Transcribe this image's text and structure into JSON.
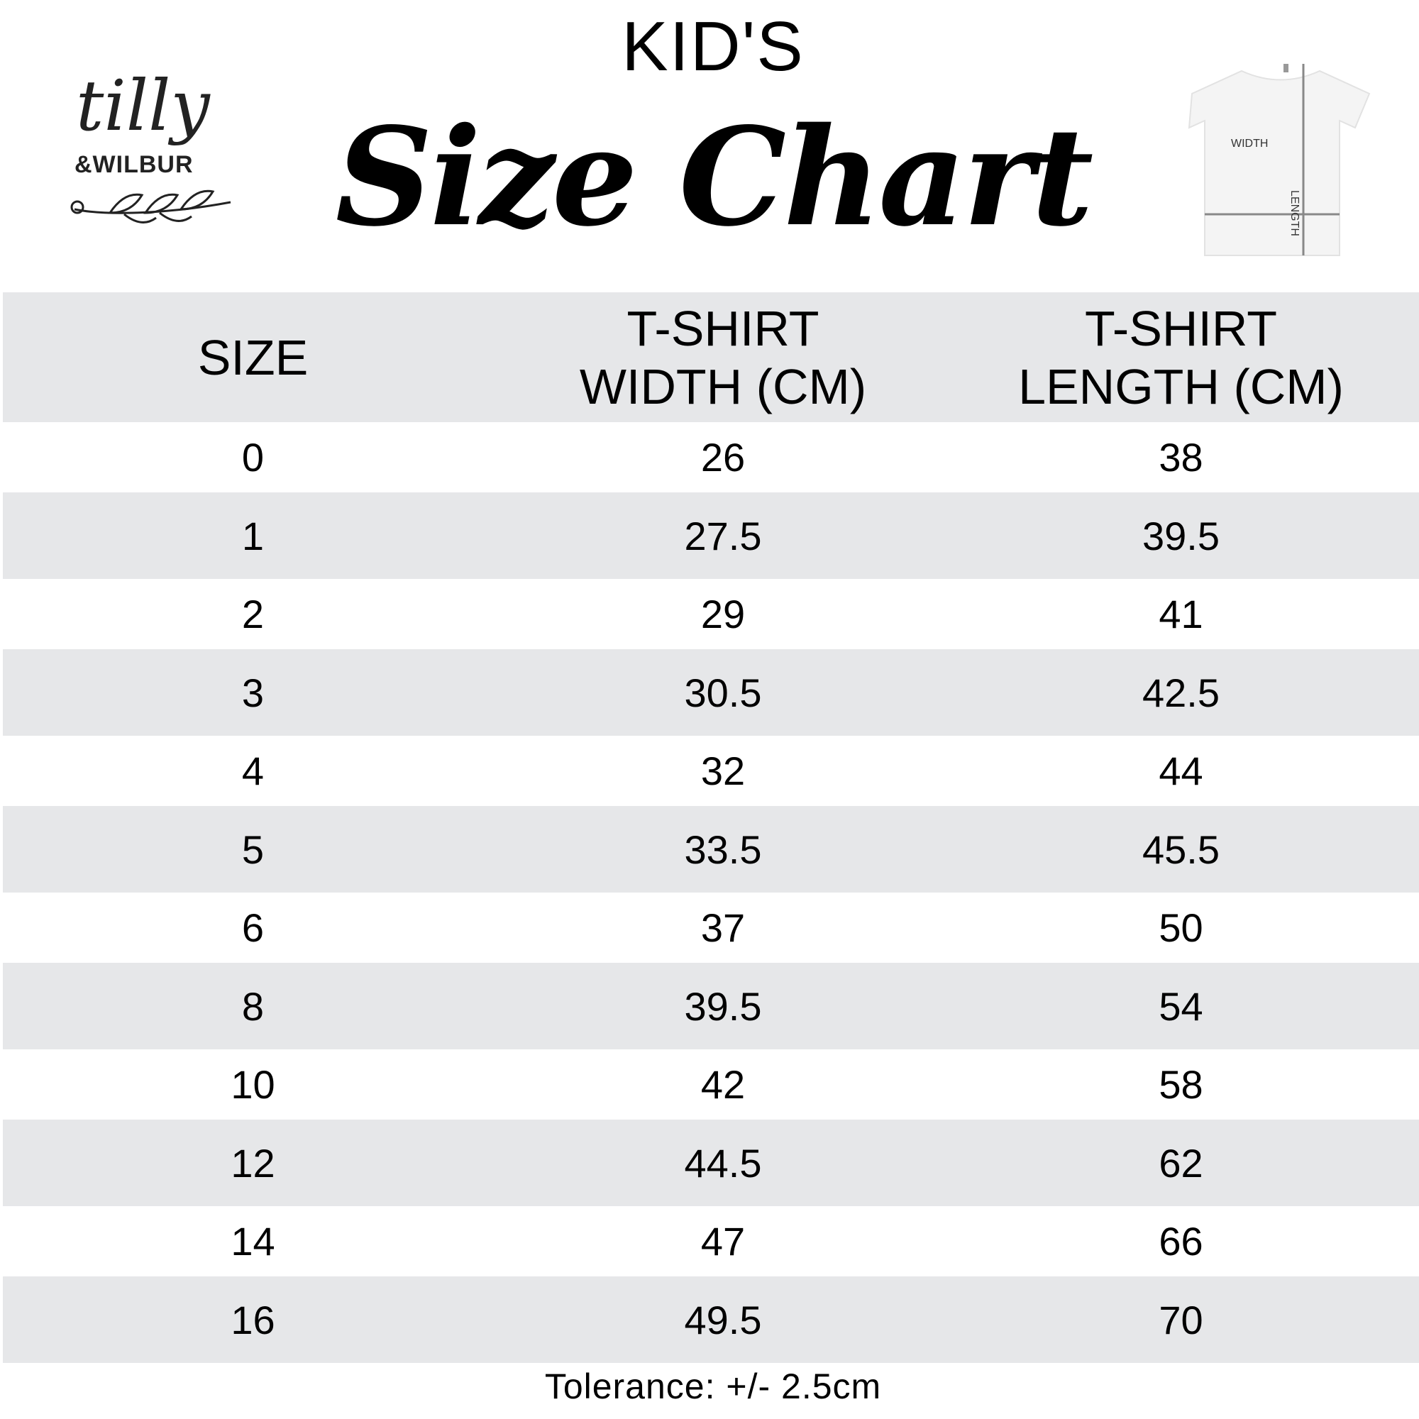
{
  "header": {
    "kicker": "KID'S",
    "title": "Size Chart"
  },
  "logo": {
    "line1": "tilly",
    "line2": "&WILBUR"
  },
  "diagram": {
    "width_label": "WIDTH",
    "length_label": "LENGTH"
  },
  "table": {
    "columns": [
      "SIZE",
      "T-SHIRT WIDTH (CM)",
      "T-SHIRT LENGTH (CM)"
    ],
    "rows": [
      [
        "0",
        "26",
        "38"
      ],
      [
        "1",
        "27.5",
        "39.5"
      ],
      [
        "2",
        "29",
        "41"
      ],
      [
        "3",
        "30.5",
        "42.5"
      ],
      [
        "4",
        "32",
        "44"
      ],
      [
        "5",
        "33.5",
        "45.5"
      ],
      [
        "6",
        "37",
        "50"
      ],
      [
        "8",
        "39.5",
        "54"
      ],
      [
        "10",
        "42",
        "58"
      ],
      [
        "12",
        "44.5",
        "62"
      ],
      [
        "14",
        "47",
        "66"
      ],
      [
        "16",
        "49.5",
        "70"
      ]
    ]
  },
  "footer": {
    "tolerance": "Tolerance: +/- 2.5cm"
  },
  "colors": {
    "row_stripe": "#e6e7e9",
    "measure_line": "#888888"
  }
}
